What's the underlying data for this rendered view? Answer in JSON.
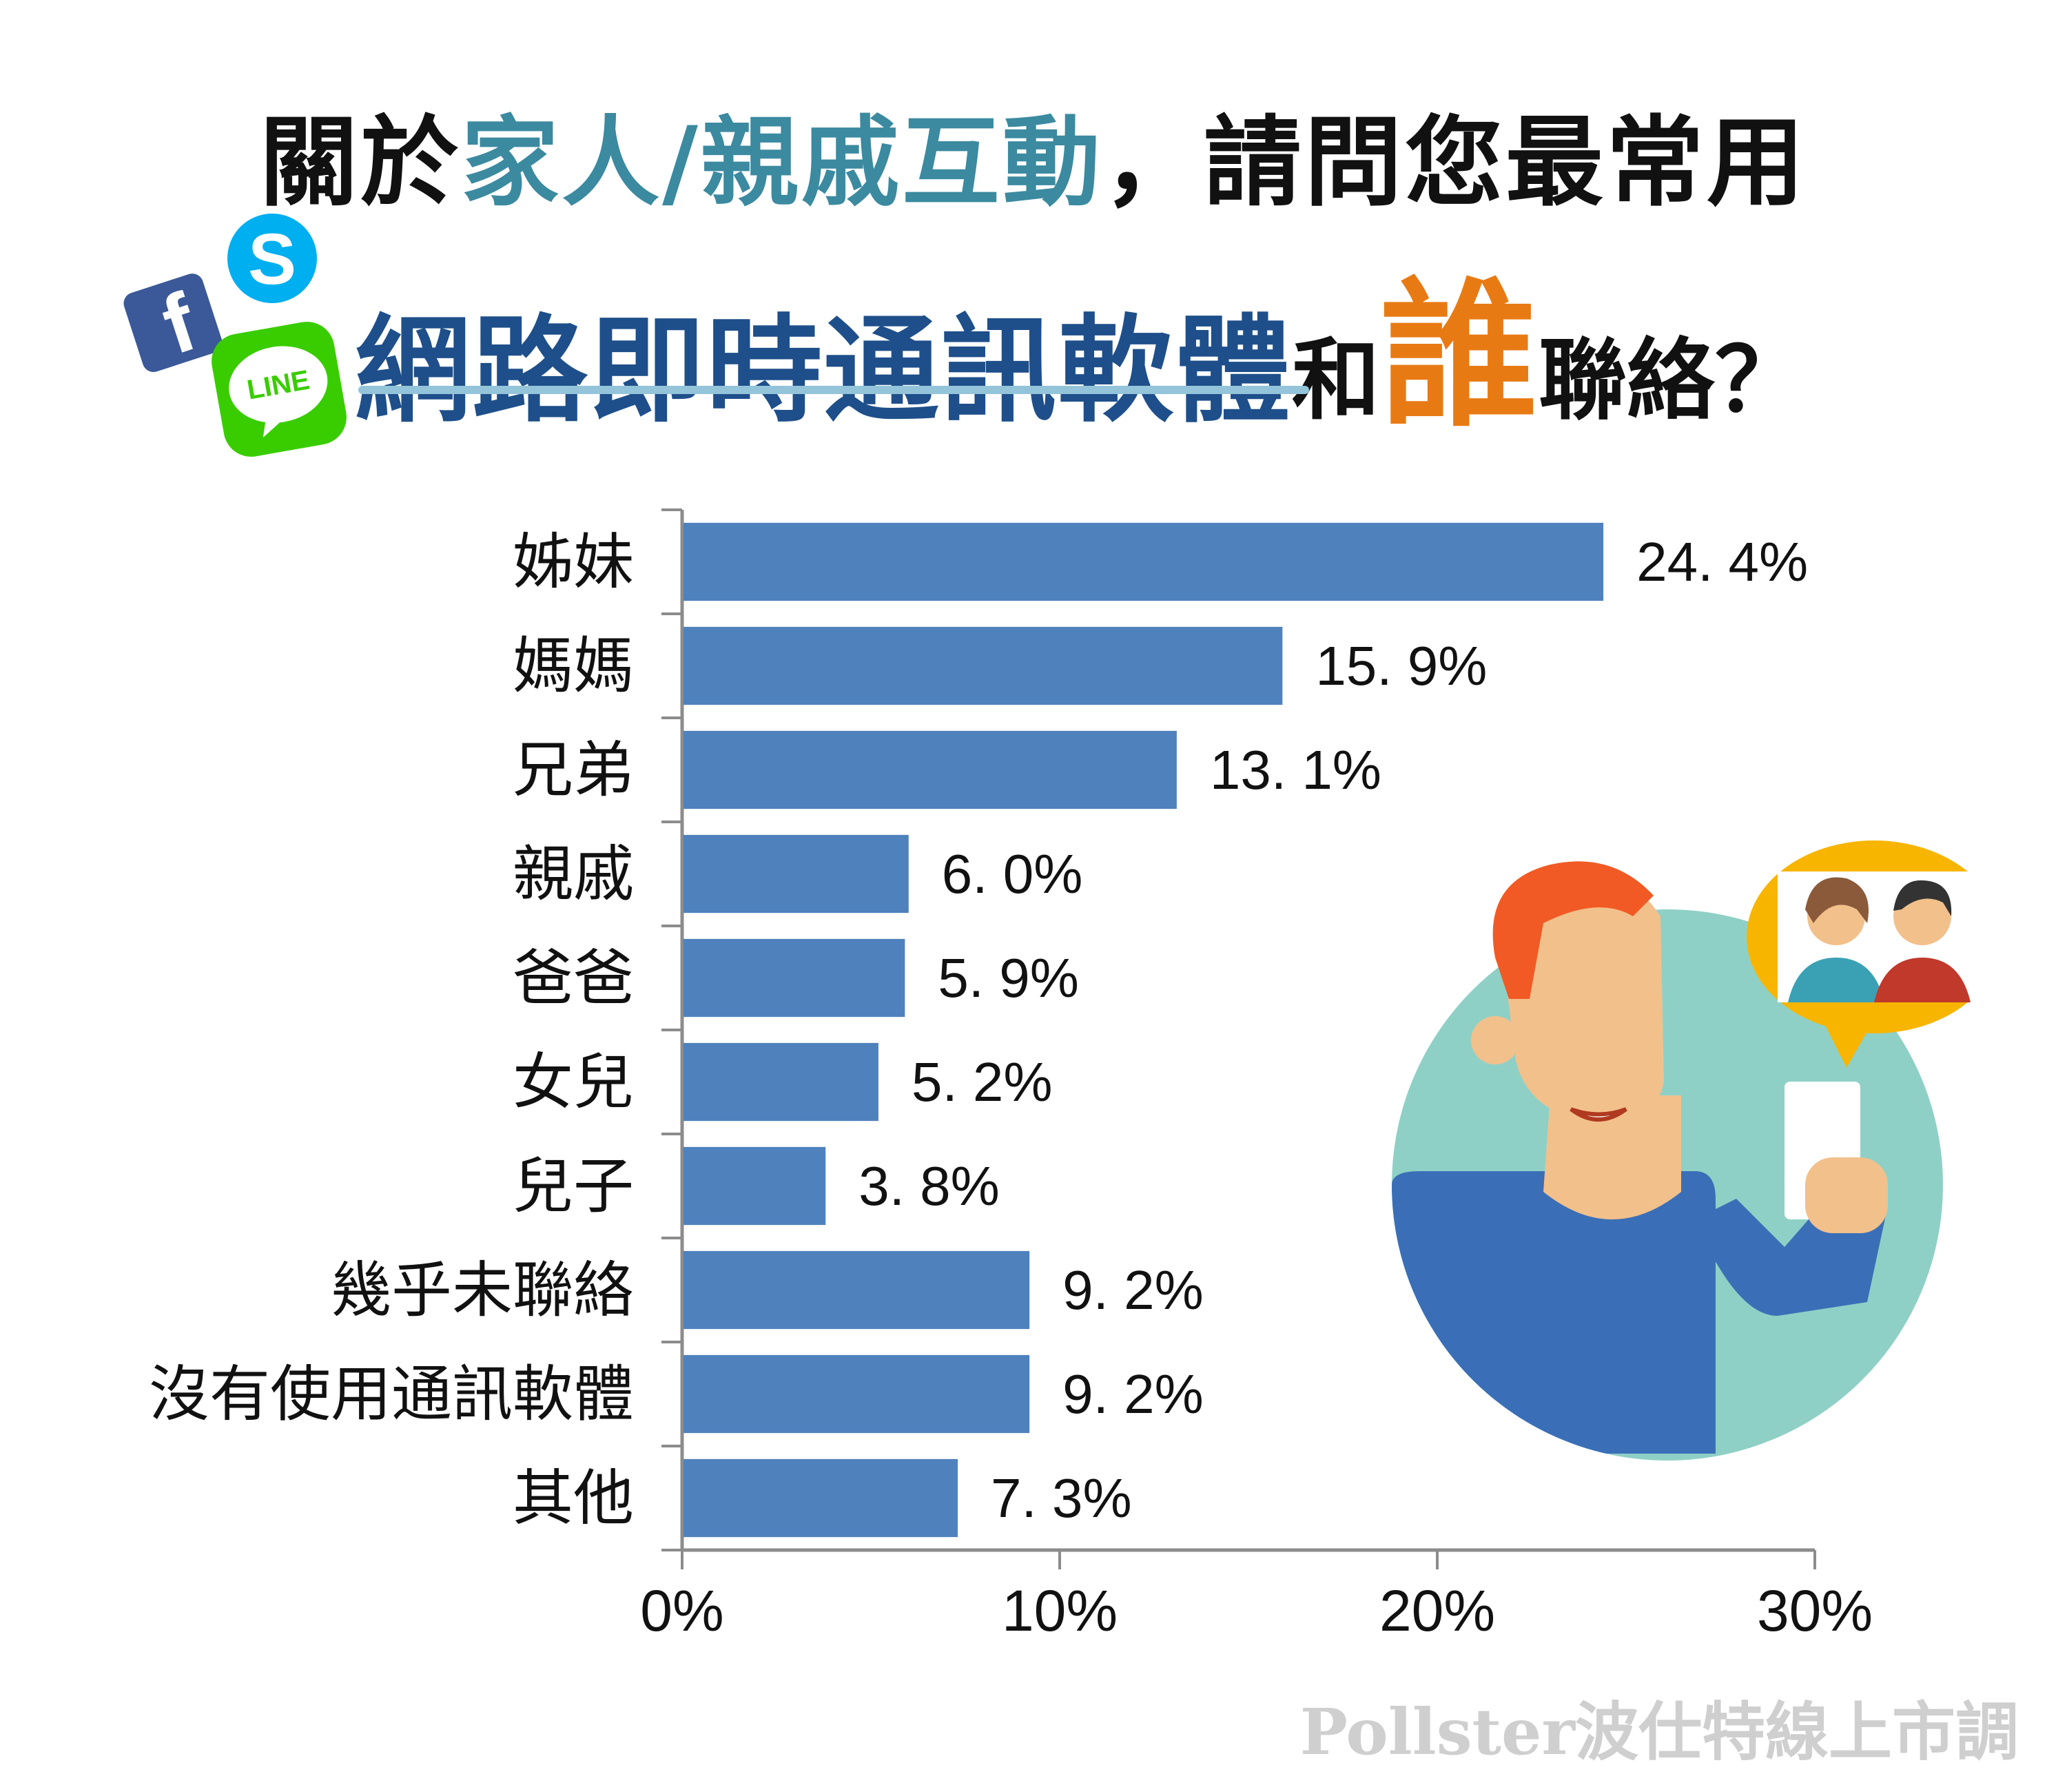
{
  "title_line1": {
    "prefix": "關於",
    "highlight": "家人/親戚互動",
    "suffix": "，請問您最常用"
  },
  "title_line2": {
    "part1": "網路即時通訊軟體",
    "part2": "和",
    "part3": "誰",
    "part4": "聯絡？"
  },
  "icons": {
    "facebook": "facebook-icon",
    "skype": "skype-icon",
    "line": "line-icon",
    "line_text": "LINE",
    "skype_text": "S",
    "facebook_text": "f"
  },
  "colors": {
    "bar": "#4f81bd",
    "title_highlight": "#3b8aa0",
    "title_blue": "#1e4f8a",
    "title_orange": "#e87a14"
  },
  "chart_data": {
    "type": "bar",
    "orientation": "horizontal",
    "categories": [
      "姊妹",
      "媽媽",
      "兄弟",
      "親戚",
      "爸爸",
      "女兒",
      "兒子",
      "幾乎未聯絡",
      "沒有使用通訊軟體",
      "其他"
    ],
    "values": [
      24.4,
      15.9,
      13.1,
      6.0,
      5.9,
      5.2,
      3.8,
      9.2,
      9.2,
      7.3
    ],
    "value_labels": [
      "24. 4%",
      "15. 9%",
      "13. 1%",
      "6. 0%",
      "5. 9%",
      "5. 2%",
      "3. 8%",
      "9. 2%",
      "9. 2%",
      "7. 3%"
    ],
    "xlim": [
      0,
      30
    ],
    "x_ticks": [
      0,
      10,
      20,
      30
    ],
    "x_tick_labels": [
      "0%",
      "10%",
      "20%",
      "30%"
    ],
    "grid": false,
    "legend": "none"
  },
  "watermark": "Pollster波仕特線上市調"
}
